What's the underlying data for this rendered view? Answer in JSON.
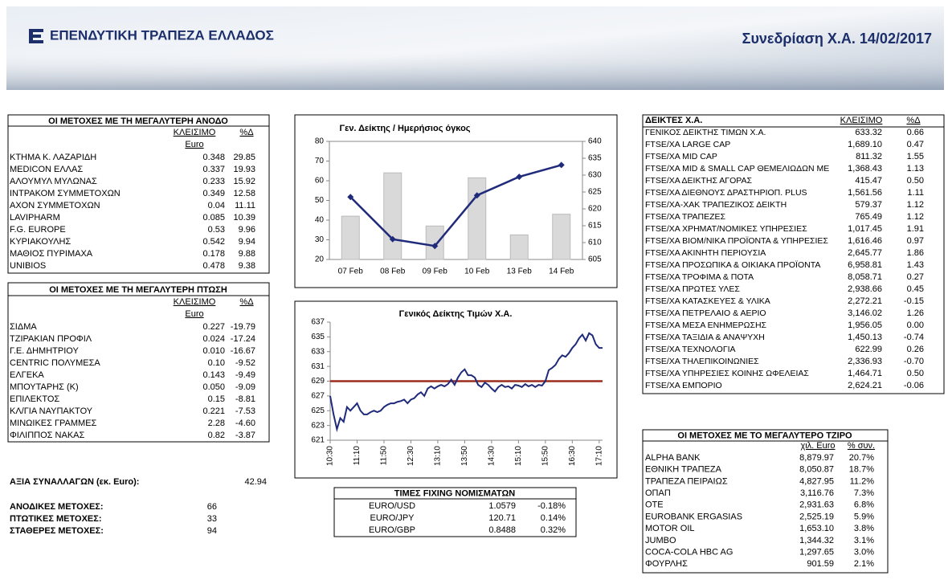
{
  "header": {
    "brand": "ΕΠΕΝΔΥΤΙΚΗ ΤΡΑΠΕΖΑ ΕΛΛΑΔΟΣ",
    "session": "Συνεδρίαση Χ.Α. 14/02/2017"
  },
  "gainers": {
    "title": "ΟΙ ΜΕΤΟΧΕΣ ΜΕ ΤΗ ΜΕΓΑΛΥΤΕΡΗ ΑΝΟΔΟ",
    "header": [
      "ΚΛΕΙΣΙΜΟ",
      "%Δ"
    ],
    "unit": "Euro",
    "rows": [
      [
        "ΚΤΗΜΑ Κ. ΛΑΖΑΡΙΔΗ",
        "0.348",
        "29.85"
      ],
      [
        "MEDICON ΕΛΛΑΣ",
        "0.337",
        "19.93"
      ],
      [
        "ΑΛΟΥΜΥΛ ΜΥΛΩΝΑΣ",
        "0.233",
        "15.92"
      ],
      [
        "ΙΝΤΡΑΚΟΜ ΣΥΜΜΕΤΟΧΩΝ",
        "0.349",
        "12.58"
      ],
      [
        "ΑΧΟΝ ΣΥΜΜΕΤΟΧΩΝ",
        "0.04",
        "11.11"
      ],
      [
        "LAVIPHARM",
        "0.085",
        "10.39"
      ],
      [
        "F.G. EUROPE",
        "0.53",
        "9.96"
      ],
      [
        "ΚΥΡΙΑΚΟΥΛΗΣ",
        "0.542",
        "9.94"
      ],
      [
        "ΜΑΘΙΟΣ ΠΥΡΙΜΑΧΑ",
        "0.178",
        "9.88"
      ],
      [
        "UNIBIOS",
        "0.478",
        "9.38"
      ]
    ]
  },
  "losers": {
    "title": "ΟΙ ΜΕΤΟΧΕΣ ΜΕ ΤΗ ΜΕΓΑΛΥΤΕΡΗ ΠΤΩΣΗ",
    "header": [
      "ΚΛΕΙΣΙΜΟ",
      "%Δ"
    ],
    "unit": "Euro",
    "rows": [
      [
        "ΣΙΔΜΑ",
        "0.227",
        "-19.79"
      ],
      [
        "ΤΖΙΡΑΚΙΑΝ ΠΡΟΦΙΛ",
        "0.024",
        "-17.24"
      ],
      [
        "Γ.Ε. ΔΗΜΗΤΡΙΟΥ",
        "0.010",
        "-16.67"
      ],
      [
        "CENTRIC ΠΟΛΥΜΕΣΑ",
        "0.10",
        "-9.52"
      ],
      [
        "ΕΛΓΕΚΑ",
        "0.143",
        "-9.49"
      ],
      [
        "ΜΠΟΥΤΑΡΗΣ (Κ)",
        "0.050",
        "-9.09"
      ],
      [
        "ΕΠΙΛΕΚΤΟΣ",
        "0.15",
        "-8.81"
      ],
      [
        "ΚΛ/ΓΙΑ ΝΑΥΠΑΚΤΟΥ",
        "0.221",
        "-7.53"
      ],
      [
        "ΜΙΝΩΙΚΕΣ ΓΡΑΜΜΕΣ",
        "2.28",
        "-4.60"
      ],
      [
        "ΦΙΛΙΠΠΟΣ ΝΑΚΑΣ",
        "0.82",
        "-3.87"
      ]
    ]
  },
  "summary": {
    "rows": [
      [
        "ΑΞΙΑ ΣΥΝΑΛΛΑΓΩΝ (εκ. Euro):",
        "42.94"
      ],
      [
        "ΑΝΟΔΙΚΕΣ ΜΕΤΟΧΕΣ:",
        "66"
      ],
      [
        "ΠΤΩΤΙΚΕΣ ΜΕΤΟΧΕΣ:",
        "33"
      ],
      [
        "ΣΤΑΘΕΡΕΣ ΜΕΤΟΧΕΣ:",
        "94"
      ]
    ]
  },
  "fixing": {
    "title": "ΤΙΜΕΣ FIXING ΝΟΜΙΣΜΑΤΩΝ",
    "rows": [
      [
        "EURO/USD",
        "1.0579",
        "-0.18%"
      ],
      [
        "EURO/JPY",
        "120.71",
        "0.14%"
      ],
      [
        "EURO/GBP",
        "0.8488",
        "0.32%"
      ]
    ]
  },
  "indices": {
    "header": [
      "ΔΕΙΚΤΕΣ Χ.Α.",
      "ΚΛΕΙΣΙΜΟ",
      "%Δ"
    ],
    "rows": [
      [
        "ΓΕΝΙΚΟΣ ΔΕΙΚΤΗΣ ΤΙΜΩΝ Χ.Α.",
        "633.32",
        "0.66"
      ],
      [
        "FTSE/ΧΑ LARGE CAP",
        "1,689.10",
        "0.47"
      ],
      [
        "FTSE/ΧΑ MID CAP",
        "811.32",
        "1.55"
      ],
      [
        "FTSE/ΧΑ MID & SMALL CAP ΘΕΜΕΛΙΩΔΩΝ ΜΕ",
        "1,368.43",
        "1.13"
      ],
      [
        "FTSE/ΧΑ ΔΕΙΚΤΗΣ ΑΓΟΡΑΣ",
        "415.47",
        "0.50"
      ],
      [
        "FTSE/ΧΑ ΔΙΕΘΝΟΥΣ ΔΡΑΣΤΗΡΙΟΠ. PLUS",
        "1,561.56",
        "1.11"
      ],
      [
        "FTSE/ΧΑ-ΧΑΚ ΤΡΑΠΕΖΙΚΟΣ ΔΕΙΚΤΗ",
        "579.37",
        "1.12"
      ],
      [
        "FTSE/ΧΑ ΤΡΑΠΕΖΕΣ",
        "765.49",
        "1.12"
      ],
      [
        "FTSE/ΧΑ ΧΡΗΜΑΤ/ΝΟΜΙΚΕΣ ΥΠΗΡΕΣΙΕΣ",
        "1,017.45",
        "1.91"
      ],
      [
        "FTSE/ΧΑ ΒΙΟΜ/ΝΙΚΑ ΠΡΟΪΟΝΤΑ & ΥΠΗΡΕΣΙΕΣ",
        "1,616.46",
        "0.97"
      ],
      [
        "FTSE/ΧΑ ΑΚΙΝΗΤΗ ΠΕΡΙΟΥΣΙΑ",
        "2,645.77",
        "1.86"
      ],
      [
        "FTSE/ΧΑ ΠΡΟΣΩΠΙΚΑ & ΟΙΚΙΑΚΑ ΠΡΟΪΟΝΤΑ",
        "6,958.81",
        "1.43"
      ],
      [
        "FTSE/ΧΑ ΤΡΟΦΙΜΑ & ΠΟΤΑ",
        "8,058.71",
        "0.27"
      ],
      [
        "FTSE/ΧΑ ΠΡΩΤΕΣ ΥΛΕΣ",
        "2,938.66",
        "0.45"
      ],
      [
        "FTSE/ΧΑ ΚΑΤΑΣΚΕΥΕΣ & ΥΛΙΚΑ",
        "2,272.21",
        "-0.15"
      ],
      [
        "FTSE/ΧΑ ΠΕΤΡΕΛΑΙΟ & ΑΕΡΙΟ",
        "3,146.02",
        "1.26"
      ],
      [
        "FTSE/ΧΑ ΜΕΣΑ ΕΝΗΜΕΡΩΣΗΣ",
        "1,956.05",
        "0.00"
      ],
      [
        "FTSE/ΧΑ ΤΑΞΙΔΙΑ & ΑΝΑΨΥΧΗ",
        "1,450.13",
        "-0.74"
      ],
      [
        "FTSE/ΧΑ ΤΕΧΝΟΛΟΓΙΑ",
        "622.99",
        "0.26"
      ],
      [
        "FTSE/ΧΑ ΤΗΛΕΠΙΚΟΙΝΩΝΙΕΣ",
        "2,336.93",
        "-0.70"
      ],
      [
        "FTSE/ΧΑ ΥΠΗΡΕΣΙΕΣ ΚΟΙΝΗΣ ΩΦΕΛΕΙΑΣ",
        "1,464.71",
        "0.50"
      ],
      [
        "FTSE/ΧΑ ΕΜΠΟΡΙΟ",
        "2,624.21",
        "-0.06"
      ]
    ]
  },
  "turnover": {
    "title": "ΟΙ ΜΕΤΟΧΕΣ ΜΕ ΤΟ ΜΕΓΑΛΥΤΕΡΟ ΤΖΙΡΟ",
    "header": [
      "χιλ. Euro",
      "% συν."
    ],
    "rows": [
      [
        "ALPHA BANK",
        "8,879.97",
        "20.7%"
      ],
      [
        "ΕΘΝΙΚΗ ΤΡΑΠΕΖΑ",
        "8,050.87",
        "18.7%"
      ],
      [
        "ΤΡΑΠΕΖΑ ΠΕΙΡΑΙΩΣ",
        "4,827.95",
        "11.2%"
      ],
      [
        "ΟΠΑΠ",
        "3,116.76",
        "7.3%"
      ],
      [
        "ΟΤΕ",
        "2,931.63",
        "6.8%"
      ],
      [
        "EUROBANK ERGASIAS",
        "2,525.19",
        "5.9%"
      ],
      [
        "MOTOR OIL",
        "1,653.10",
        "3.8%"
      ],
      [
        "JUMBO",
        "1,344.32",
        "3.1%"
      ],
      [
        "COCA-COLA HBC AG",
        "1,297.65",
        "3.0%"
      ],
      [
        "ΦΟΥΡΛΗΣ",
        "901.59",
        "2.1%"
      ]
    ]
  },
  "chart_data": [
    {
      "type": "bar_line",
      "title": "Γεν. Δείκτης / Ημερήσιος όγκος",
      "categories": [
        "07 Feb",
        "08 Feb",
        "09 Feb",
        "10 Feb",
        "13 Feb",
        "14 Feb"
      ],
      "series": [
        {
          "type": "bar",
          "color": "#d9d9d9",
          "values": [
            42,
            64,
            37,
            61.5,
            32.5,
            43
          ]
        },
        {
          "type": "line",
          "axis": "y2",
          "color": "#1f2a7a",
          "values": [
            623.5,
            611,
            609,
            624,
            629.5,
            633
          ]
        }
      ],
      "ylim": [
        20,
        80
      ],
      "yticks": [
        20,
        30,
        40,
        50,
        60,
        70,
        80
      ],
      "y2lim": [
        605,
        640
      ],
      "y2ticks": [
        605,
        610,
        615,
        620,
        625,
        630,
        635,
        640
      ]
    },
    {
      "type": "line",
      "title": "Γενικός Δείκτης Τιμών Χ.Α.",
      "color": "#1f2a7a",
      "reference_line": {
        "value": 629,
        "color": "#9b2d1f"
      },
      "categories": [
        "10:30",
        null,
        null,
        null,
        null,
        null,
        null,
        null,
        "11:10",
        null,
        null,
        null,
        null,
        null,
        null,
        null,
        "11:50",
        null,
        null,
        null,
        null,
        null,
        null,
        null,
        "12:30",
        null,
        null,
        null,
        null,
        null,
        null,
        null,
        "13:10",
        null,
        null,
        null,
        null,
        null,
        null,
        null,
        "13:50",
        null,
        null,
        null,
        null,
        null,
        null,
        null,
        "14:30",
        null,
        null,
        null,
        null,
        null,
        null,
        null,
        "15:10",
        null,
        null,
        null,
        null,
        null,
        null,
        null,
        "15:50",
        null,
        null,
        null,
        null,
        null,
        null,
        null,
        "16:30",
        null,
        null,
        null,
        null,
        null,
        null,
        null,
        "17:10",
        null
      ],
      "values": [
        627,
        624.5,
        622.5,
        624,
        623.5,
        625.5,
        625,
        625.5,
        626,
        625,
        624.5,
        624.5,
        624.8,
        625,
        624.8,
        625,
        625.5,
        625.8,
        626,
        626,
        626.2,
        626.3,
        626.5,
        626,
        626.5,
        626.7,
        627.2,
        627.5,
        627,
        628,
        628.3,
        628,
        628.3,
        628.5,
        628.3,
        628.6,
        629.2,
        628.5,
        629.5,
        630.2,
        630.6,
        629.8,
        629.8,
        629.5,
        628.5,
        628.2,
        628.8,
        628.5,
        628,
        627.6,
        628.2,
        628.5,
        628.2,
        628.3,
        628,
        628.5,
        628.4,
        628.2,
        628.6,
        628.3,
        628.5,
        628.2,
        628.5,
        628.4,
        629,
        630.5,
        630.8,
        631.2,
        632,
        632.5,
        632.3,
        632.8,
        633.5,
        634,
        634.8,
        635.3,
        634.5,
        635.5,
        635.2,
        634,
        633.5,
        633.5
      ],
      "ylim": [
        621,
        637
      ],
      "yticks": [
        621,
        623,
        625,
        627,
        629,
        631,
        633,
        635,
        637
      ]
    }
  ]
}
